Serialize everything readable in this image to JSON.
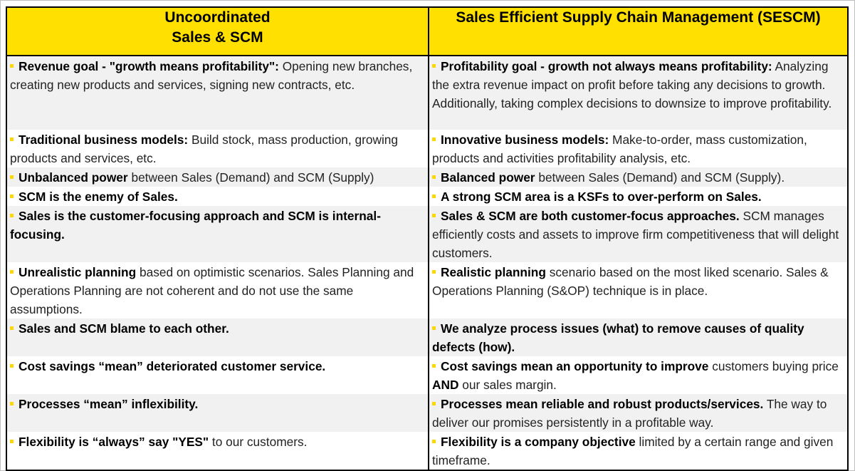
{
  "header": {
    "left_line1": "Uncoordinated",
    "left_line2": "Sales & SCM",
    "right": "Sales Efficient Supply Chain Management (SESCM)"
  },
  "rows": [
    {
      "left": {
        "bold": "Revenue goal - \"growth means profitability\":",
        "text": " Opening new branches, creating new products and services, signing new contracts, etc."
      },
      "right": {
        "bold": "Profitability goal - growth not always means profitability:",
        "text": " Analyzing the extra revenue impact on profit before taking any decisions to growth. Additionally, taking complex decisions to downsize to improve profitability."
      }
    },
    {
      "left": {
        "bold": "Traditional business models:",
        "text": " Build stock, mass production, growing products and services, etc."
      },
      "right": {
        "bold": "Innovative business models:",
        "text": " Make-to-order, mass customization, products and activities profitability analysis, etc."
      }
    },
    {
      "left": {
        "bold": "Unbalanced power",
        "text": " between Sales (Demand) and SCM (Supply)"
      },
      "right": {
        "bold": "Balanced power",
        "text": " between Sales (Demand) and SCM (Supply)."
      }
    },
    {
      "left": {
        "bold": "SCM is the enemy of Sales.",
        "text": ""
      },
      "right": {
        "bold": "A strong SCM area is a KSFs to over-perform on Sales.",
        "text": ""
      }
    },
    {
      "left": {
        "bold": "Sales is the customer-focusing approach and SCM is internal-focusing.",
        "text": ""
      },
      "right": {
        "bold": "Sales & SCM are both customer-focus approaches.",
        "text": " SCM manages efficiently costs and assets to improve firm competitiveness that will delight customers."
      }
    },
    {
      "left": {
        "bold": "Unrealistic planning",
        "text": " based on optimistic scenarios. Sales Planning and Operations Planning are not coherent and do not use the same assumptions."
      },
      "right": {
        "bold": "Realistic planning",
        "text": " scenario based on the most liked scenario. Sales & Operations Planning (S&OP) technique is in place."
      }
    },
    {
      "left": {
        "bold": "Sales and SCM blame to each other.",
        "text": ""
      },
      "right": {
        "bold": "We analyze process issues (what) to remove causes of quality defects (how).",
        "text": ""
      }
    },
    {
      "left": {
        "bold": "Cost savings “mean” deteriorated customer service.",
        "text": ""
      },
      "right": {
        "bold": "Cost savings mean an opportunity to improve",
        "text": " customers buying price ",
        "bold2": "AND",
        "text2": " our sales margin."
      }
    },
    {
      "left": {
        "bold": "Processes “mean” inflexibility.",
        "text": ""
      },
      "right": {
        "bold": "Processes mean reliable and robust products/services.",
        "text": " The way to deliver our promises persistently in a profitable way."
      }
    },
    {
      "left": {
        "bold": "Flexibility is “always” say \"YES\"",
        "text": " to our customers."
      },
      "right": {
        "bold": "Flexibility is a company objective",
        "text": " limited by a certain range and given timeframe."
      }
    }
  ],
  "colors": {
    "header_bg": "#ffe000",
    "bullet": "#ffd700",
    "row_alt": "#f1f1f1"
  }
}
